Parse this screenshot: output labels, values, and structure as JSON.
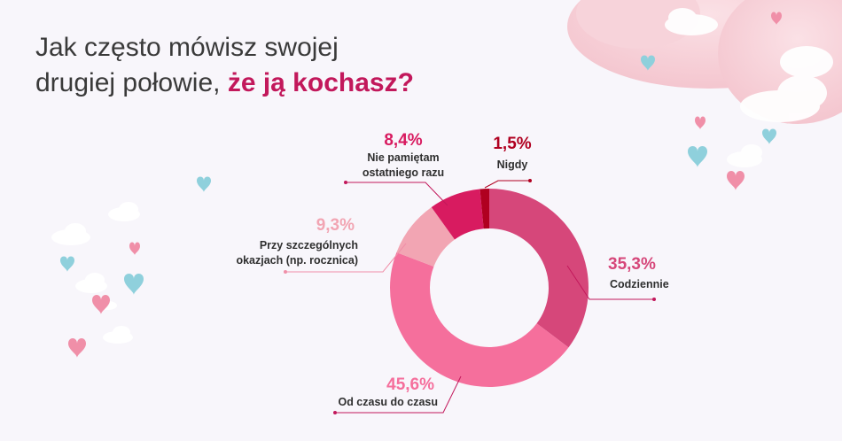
{
  "title": {
    "line1": "Jak często mówisz swojej",
    "line2_plain": "drugiej połowie,",
    "line2_accent": "że ją kochasz?"
  },
  "chart_data": {
    "type": "pie",
    "donut": true,
    "categories": [
      "Codziennie",
      "Od czasu do czasu",
      "Przy szczególnych okazjach (np. rocznica)",
      "Nie pamiętam ostatniego razu",
      "Nigdy"
    ],
    "values": [
      35.3,
      45.6,
      9.3,
      8.4,
      1.5
    ],
    "value_labels": [
      "35,3%",
      "45,6%",
      "9,3%",
      "8,4%",
      "1,5%"
    ],
    "colors": [
      "#d6477a",
      "#f56f9c",
      "#f2a5b3",
      "#d81b60",
      "#b00020"
    ]
  },
  "labels": {
    "codziennie": "Codziennie",
    "od_czasu": "Od czasu do czasu",
    "przy_1": "Przy szczególnych",
    "przy_2": "okazjach (np. rocznica)",
    "nie_1": "Nie pamiętam",
    "nie_2": "ostatniego razu",
    "nigdy": "Nigdy"
  }
}
